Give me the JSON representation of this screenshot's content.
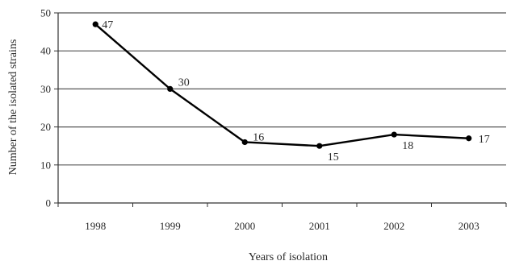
{
  "chart_data": {
    "type": "line",
    "categories": [
      "1998",
      "1999",
      "2000",
      "2001",
      "2002",
      "2003"
    ],
    "values": [
      47,
      30,
      16,
      15,
      18,
      17
    ],
    "data_labels": [
      "47",
      "30",
      "16",
      "15",
      "18",
      "17"
    ],
    "title": "",
    "xlabel": "Years of isolation",
    "ylabel": "Number of the isolated strains",
    "ylim": [
      0,
      50
    ],
    "yticks": [
      "0",
      "10",
      "20",
      "30",
      "40",
      "50"
    ],
    "grid": "horizontal",
    "legend": "none",
    "colors": {
      "line": "#000000",
      "grid": "#555555",
      "axis": "#333333",
      "text": "#2a2a2a"
    }
  }
}
